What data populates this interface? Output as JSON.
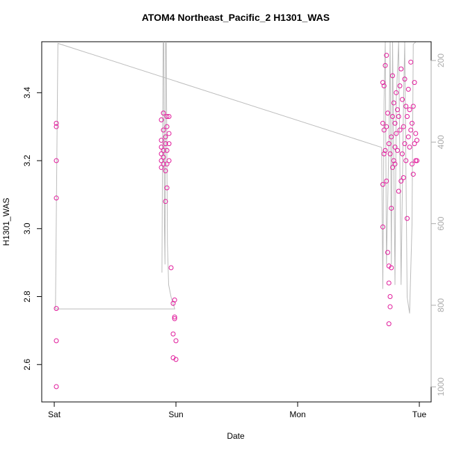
{
  "chart_data": {
    "type": "scatter",
    "title": "ATOM4 Northeast_Pacific_2 H1301_WAS",
    "xlabel": "Date",
    "ylabel": "H1301_WAS",
    "xlim": [
      -0.103,
      3.097
    ],
    "xticks": [
      {
        "value": 0,
        "label": "Sat"
      },
      {
        "value": 1,
        "label": "Sun"
      },
      {
        "value": 2,
        "label": "Mon"
      },
      {
        "value": 3,
        "label": "Tue"
      }
    ],
    "ylim": [
      2.49,
      3.55
    ],
    "yticks": [
      2.6,
      2.8,
      {
        "value": 3,
        "label": "3.0"
      },
      3.2,
      3.4
    ],
    "y2lim": [
      1037,
      154
    ],
    "y2ticks": [
      200,
      400,
      600,
      800,
      1000
    ],
    "color": "#e0199a",
    "x": [
      0.017,
      0.017,
      0.017,
      0.017,
      0.017,
      0.017,
      0.017,
      0.88,
      0.88,
      0.88,
      0.88,
      0.88,
      0.88,
      0.897,
      0.897,
      0.897,
      0.897,
      0.897,
      0.914,
      0.914,
      0.914,
      0.914,
      0.926,
      0.926,
      0.926,
      0.926,
      0.926,
      0.943,
      0.943,
      0.943,
      0.943,
      0.96,
      0.977,
      0.977,
      0.977,
      0.989,
      0.989,
      0.989,
      1.0,
      1.0,
      2.7,
      2.7,
      2.7,
      2.7,
      2.71,
      2.71,
      2.71,
      2.72,
      2.72,
      2.73,
      2.73,
      2.73,
      2.74,
      2.74,
      2.75,
      2.75,
      2.75,
      2.75,
      2.76,
      2.76,
      2.76,
      2.77,
      2.77,
      2.77,
      2.78,
      2.78,
      2.78,
      2.79,
      2.79,
      2.8,
      2.8,
      2.8,
      2.81,
      2.81,
      2.82,
      2.82,
      2.83,
      2.83,
      2.84,
      2.84,
      2.85,
      2.85,
      2.86,
      2.86,
      2.87,
      2.87,
      2.88,
      2.88,
      2.89,
      2.89,
      2.9,
      2.9,
      2.91,
      2.91,
      2.92,
      2.92,
      2.93,
      2.93,
      2.94,
      2.94,
      2.95,
      2.95,
      2.96,
      2.96,
      2.97,
      2.97,
      2.98,
      2.98
    ],
    "values": [
      3.31,
      3.3,
      3.2,
      3.09,
      2.765,
      2.67,
      2.535,
      3.32,
      3.26,
      3.24,
      3.22,
      3.2,
      3.18,
      3.34,
      3.29,
      3.23,
      3.21,
      3.19,
      3.27,
      3.25,
      3.17,
      3.08,
      3.33,
      3.3,
      3.23,
      3.19,
      3.12,
      3.33,
      3.28,
      3.25,
      3.2,
      2.885,
      2.78,
      2.69,
      2.62,
      2.79,
      2.74,
      2.735,
      2.67,
      2.615,
      3.43,
      3.31,
      3.13,
      3.005,
      3.42,
      3.29,
      3.22,
      3.48,
      3.23,
      3.51,
      3.3,
      3.14,
      3.34,
      2.93,
      3.25,
      2.89,
      2.84,
      2.72,
      3.22,
      2.8,
      2.77,
      3.27,
      3.06,
      2.885,
      3.45,
      3.33,
      3.18,
      3.37,
      3.2,
      3.31,
      3.24,
      3.19,
      3.4,
      3.28,
      3.35,
      3.23,
      3.33,
      3.11,
      3.42,
      3.29,
      3.47,
      3.14,
      3.38,
      3.22,
      3.3,
      3.15,
      3.44,
      3.25,
      3.36,
      3.2,
      3.33,
      3.03,
      3.41,
      3.27,
      3.35,
      3.24,
      3.49,
      3.29,
      3.31,
      3.19,
      3.36,
      3.16,
      3.43,
      3.25,
      3.28,
      3.2,
      3.26,
      3.2
    ],
    "line": {
      "color": "#bbbbbb",
      "axis": "y2",
      "x": [
        0.885,
        0.89,
        0.895,
        0.9,
        0.905,
        0.91,
        0.915,
        0.92,
        0.93,
        0.94,
        0.96,
        0.99,
        0.01,
        0.03,
        2.69,
        2.7,
        2.71,
        2.72,
        2.73,
        2.75,
        2.76,
        2.77,
        2.78,
        2.8,
        2.81,
        2.83,
        2.85,
        2.87,
        2.88,
        2.9,
        2.92,
        2.94,
        2.95,
        2.97
      ],
      "values": [
        720,
        400,
        155,
        155,
        600,
        700,
        155,
        155,
        650,
        750,
        780,
        809,
        809,
        158,
        413,
        760,
        300,
        155,
        700,
        400,
        155,
        700,
        155,
        750,
        300,
        155,
        750,
        300,
        155,
        780,
        820,
        600,
        160,
        155
      ]
    }
  }
}
